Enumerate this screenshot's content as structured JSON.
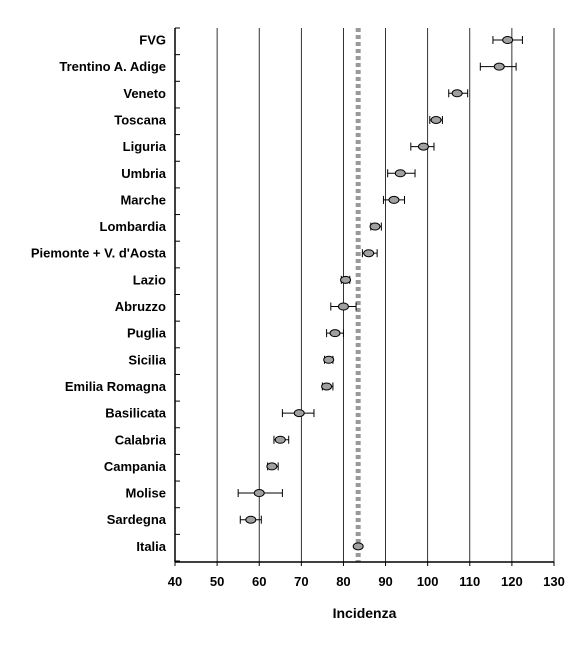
{
  "chart_data": {
    "type": "scatter",
    "orientation": "horizontal",
    "xlabel": "Incidenza",
    "ylabel": "",
    "title": "",
    "xlim": [
      40,
      130
    ],
    "xticks": [
      "40",
      "50",
      "60",
      "70",
      "80",
      "90",
      "100",
      "110",
      "120",
      "130"
    ],
    "grid": "vertical",
    "reference_line": 83.5,
    "series": [
      {
        "categories": [
          "FVG",
          "Trentino A. Adige",
          "Veneto",
          "Toscana",
          "Liguria",
          "Umbria",
          "Marche",
          "Lombardia",
          "Piemonte + V. d'Aosta",
          "Lazio",
          "Abruzzo",
          "Puglia",
          "Sicilia",
          "Emilia Romagna",
          "Basilicata",
          "Calabria",
          "Campania",
          "Molise",
          "Sardegna",
          "Italia"
        ],
        "values": [
          119,
          117,
          107,
          102,
          99,
          93.5,
          92,
          87.5,
          86,
          80.5,
          80,
          78,
          76.5,
          76,
          69.5,
          65,
          63,
          60,
          58,
          83.5
        ],
        "ci_low": [
          115.5,
          112.5,
          105,
          100.5,
          96,
          90.5,
          89.5,
          86.5,
          84.5,
          79.5,
          77,
          76,
          75.5,
          75,
          65.5,
          63.5,
          62,
          55,
          55.5,
          83.5
        ],
        "ci_high": [
          122.5,
          121,
          109.5,
          103.5,
          101.5,
          97,
          94.5,
          89,
          88,
          81.5,
          83,
          80,
          77.5,
          77.5,
          73,
          67,
          64.5,
          65.5,
          60.5,
          83.5
        ]
      }
    ],
    "colors": {
      "marker_fill": "#a0a0a0",
      "marker_stroke": "#000000",
      "grid": "#000000",
      "reference_line": "#999999"
    }
  }
}
